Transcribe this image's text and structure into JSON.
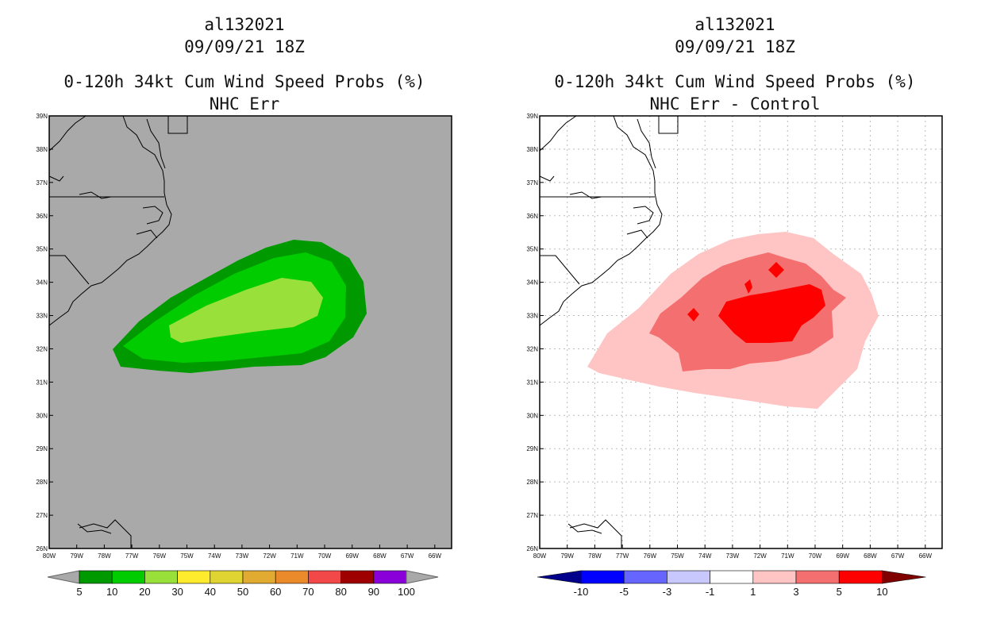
{
  "left_panel": {
    "title_line1": "al132021",
    "title_line2": "09/09/21 18Z",
    "title_line3": "0-120h 34kt Cum Wind Speed Probs (%)",
    "title_line4": "NHC Err",
    "colorbar": {
      "labels": [
        "5",
        "10",
        "20",
        "30",
        "40",
        "50",
        "60",
        "70",
        "80",
        "90",
        "100"
      ],
      "colors": [
        "#009a00",
        "#00cc00",
        "#99e03a",
        "#ffeb2e",
        "#e0d432",
        "#e0ab30",
        "#ea8a2a",
        "#f24848",
        "#9e0000",
        "#8a00d8"
      ],
      "end_color": "#a9a9a9"
    },
    "background_color": "#a9a9a9",
    "contours": [
      {
        "level": "5-10",
        "color": "#009a00"
      },
      {
        "level": "10-20",
        "color": "#00cc00"
      },
      {
        "level": "20-30",
        "color": "#99e03a"
      }
    ]
  },
  "right_panel": {
    "title_line1": "al132021",
    "title_line2": "09/09/21 18Z",
    "title_line3": "0-120h 34kt Cum Wind Speed Probs (%)",
    "title_line4": "NHC Err - Control",
    "colorbar": {
      "labels": [
        "-10",
        "-5",
        "-3",
        "-1",
        "1",
        "3",
        "5",
        "10"
      ],
      "colors": [
        "#0000ff",
        "#6666ff",
        "#c8c8ff",
        "#ffffff",
        "#ffc4c4",
        "#f47070",
        "#ff0000"
      ],
      "end_left": "#00008b",
      "end_right": "#800000"
    },
    "background_color": "#ffffff",
    "contours": [
      {
        "level": "1-3",
        "color": "#ffc4c4"
      },
      {
        "level": "3-5",
        "color": "#f47070"
      },
      {
        "level": "5-10",
        "color": "#ff0000"
      }
    ]
  },
  "axes": {
    "lat_labels": [
      "39N",
      "38N",
      "37N",
      "36N",
      "35N",
      "34N",
      "33N",
      "32N",
      "31N",
      "30N",
      "29N",
      "28N",
      "27N",
      "26N"
    ],
    "lon_labels": [
      "80W",
      "79W",
      "78W",
      "77W",
      "76W",
      "75W",
      "74W",
      "73W",
      "72W",
      "71W",
      "70W",
      "69W",
      "68W",
      "67W",
      "66W"
    ]
  }
}
